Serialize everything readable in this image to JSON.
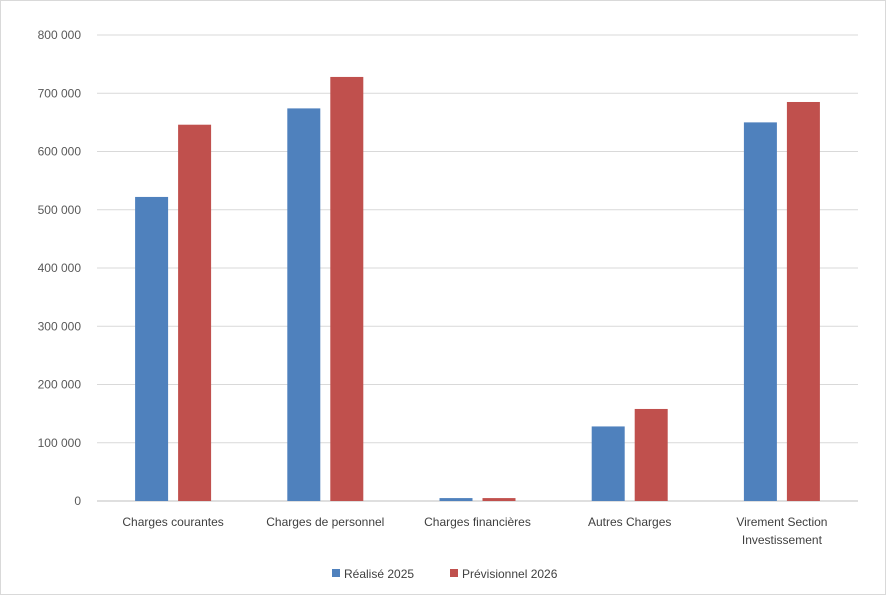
{
  "chart_data": {
    "type": "bar",
    "categories": [
      [
        "Charges courantes"
      ],
      [
        "Charges de personnel"
      ],
      [
        "Charges financières"
      ],
      [
        "Autres Charges"
      ],
      [
        "Virement Section",
        "Investissement"
      ]
    ],
    "series": [
      {
        "name": "Réalisé 2025",
        "color": "#4f81bd",
        "values": [
          522000,
          674000,
          5000,
          128000,
          650000
        ]
      },
      {
        "name": "Prévisionnel 2026",
        "color": "#c0504d",
        "values": [
          646000,
          728000,
          5000,
          158000,
          685000
        ]
      }
    ],
    "ylim": [
      0,
      800000
    ],
    "yticks": [
      0,
      100000,
      200000,
      300000,
      400000,
      500000,
      600000,
      700000,
      800000
    ],
    "ytick_labels": [
      "0",
      "100 000",
      "200 000",
      "300 000",
      "400 000",
      "500 000",
      "600 000",
      "700 000",
      "800 000"
    ],
    "grid": true,
    "legend_position": "bottom"
  }
}
